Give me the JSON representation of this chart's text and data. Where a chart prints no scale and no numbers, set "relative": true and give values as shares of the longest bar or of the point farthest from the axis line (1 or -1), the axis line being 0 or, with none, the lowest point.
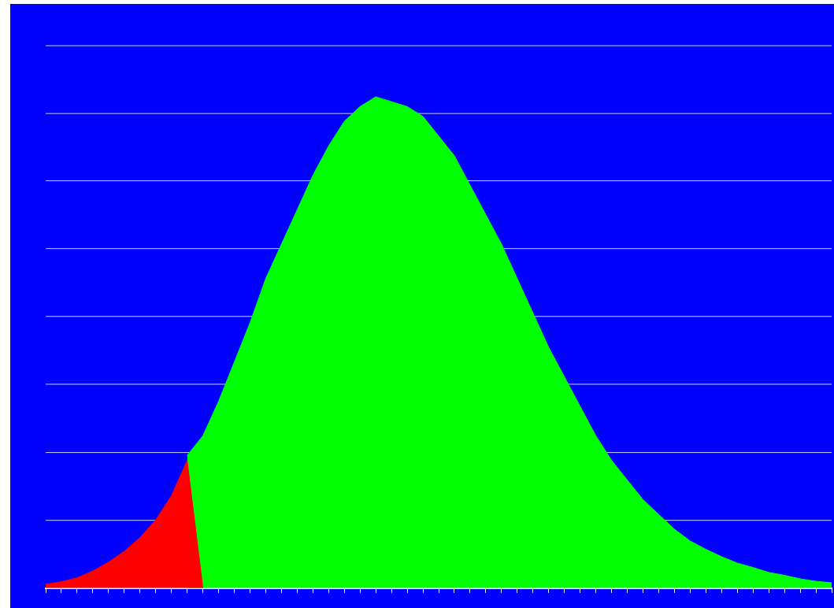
{
  "chart_data": {
    "type": "area",
    "relative": true,
    "ref_lines": [
      {
        "axis": "y",
        "value": 0.138,
        "color": "#d0d0ff"
      },
      {
        "axis": "y",
        "value": 0.276,
        "color": "#d0d0ff"
      },
      {
        "axis": "y",
        "value": 0.415,
        "color": "#d0d0ff"
      },
      {
        "axis": "y",
        "value": 0.553,
        "color": "#d0d0ff"
      },
      {
        "axis": "y",
        "value": 0.691,
        "color": "#d0d0ff"
      },
      {
        "axis": "y",
        "value": 0.829,
        "color": "#d0d0ff"
      },
      {
        "axis": "y",
        "value": 0.966,
        "color": "#d0d0ff"
      },
      {
        "axis": "y",
        "value": 1.104,
        "color": "#d0d0ff"
      }
    ],
    "categories": [
      null,
      null,
      null,
      null,
      null,
      null,
      null,
      null,
      null,
      null,
      null,
      null,
      null,
      null,
      null,
      null,
      null,
      null,
      null,
      null,
      null,
      null,
      null,
      null,
      null,
      null,
      null,
      null,
      null,
      null,
      null,
      null,
      null,
      null,
      null,
      null,
      null,
      null,
      null,
      null,
      null,
      null,
      null,
      null,
      null,
      null,
      null,
      null,
      null,
      null,
      null
    ],
    "series": [
      {
        "color": "#ff0000",
        "values": [
          0.008,
          0.013,
          0.021,
          0.035,
          0.053,
          0.075,
          0.103,
          0.139,
          0.188,
          0.26,
          0,
          null,
          null,
          null,
          null,
          null,
          null,
          null,
          null,
          null,
          null,
          null,
          null,
          null,
          null,
          null,
          null,
          null,
          null,
          null,
          null,
          null,
          null,
          null,
          null,
          null,
          null,
          null,
          null,
          null,
          null,
          null,
          null,
          null,
          null,
          null,
          null,
          null,
          null,
          null,
          null
        ]
      },
      {
        "color": "#00ff00",
        "values": [
          null,
          null,
          null,
          null,
          null,
          null,
          null,
          null,
          null,
          0.27,
          0.31,
          0.38,
          0.46,
          0.54,
          0.63,
          0.7,
          0.77,
          0.84,
          0.9,
          0.95,
          0.98,
          1,
          0.99,
          0.98,
          0.96,
          0.92,
          0.88,
          0.82,
          0.76,
          0.7,
          0.63,
          0.56,
          0.49,
          0.43,
          0.37,
          0.31,
          0.26,
          0.22,
          0.18,
          0.15,
          0.12,
          0.096,
          0.079,
          0.064,
          0.051,
          0.042,
          0.032,
          0.026,
          0.019,
          0.014,
          0.011
        ]
      }
    ]
  }
}
